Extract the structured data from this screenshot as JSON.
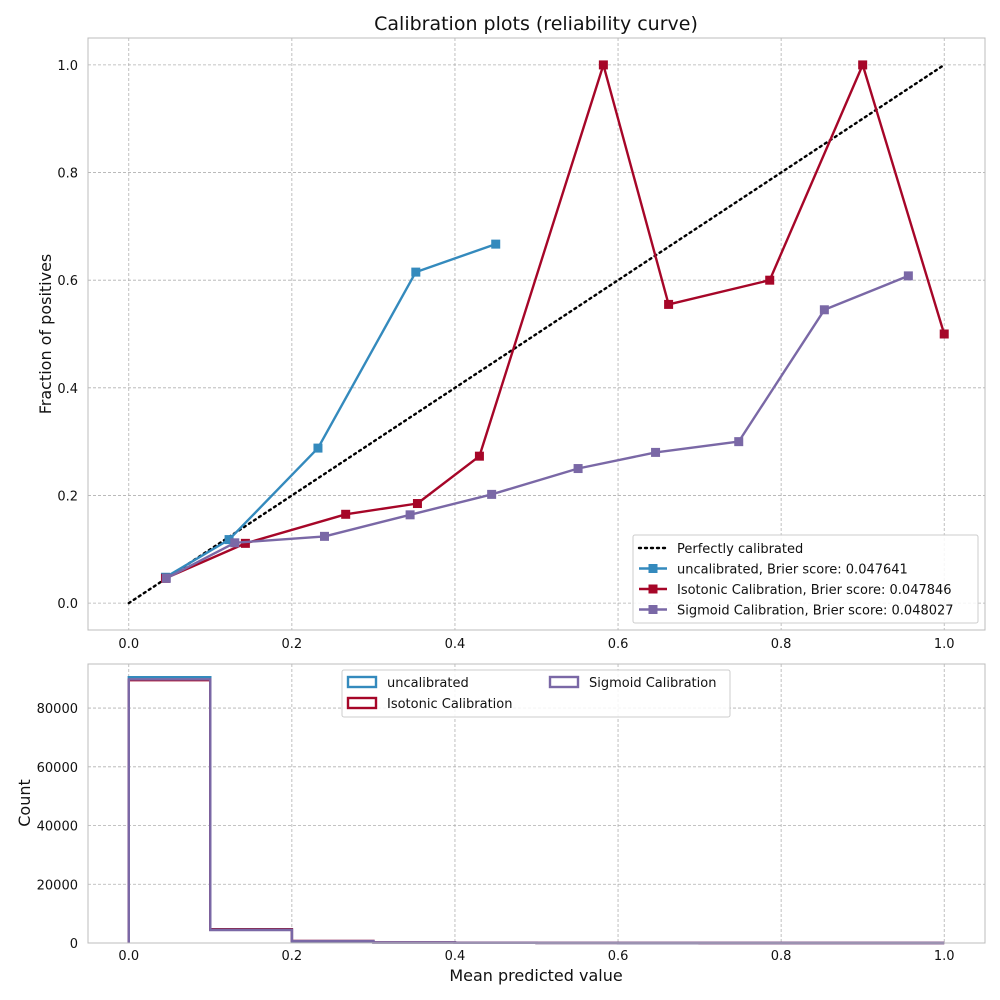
{
  "chart_data": [
    {
      "type": "line",
      "title": "Calibration plots  (reliability curve)",
      "xlabel": "",
      "ylabel": "Fraction of positives",
      "xlim": [
        -0.05,
        1.05
      ],
      "ylim": [
        -0.05,
        1.05
      ],
      "xticks": [
        "0.0",
        "0.2",
        "0.4",
        "0.6",
        "0.8",
        "1.0"
      ],
      "yticks": [
        "0.0",
        "0.2",
        "0.4",
        "0.6",
        "0.8",
        "1.0"
      ],
      "grid": true,
      "legend_position": "lower right",
      "series": [
        {
          "name": "Perfectly calibrated",
          "color": "#000000",
          "style": "dotted",
          "x": [
            0,
            1
          ],
          "y": [
            0,
            1
          ]
        },
        {
          "name": "uncalibrated, Brier score: 0.047641",
          "color": "#348ABD",
          "marker": "square",
          "x": [
            0.045,
            0.123,
            0.232,
            0.352,
            0.45
          ],
          "y": [
            0.048,
            0.118,
            0.288,
            0.615,
            0.667
          ]
        },
        {
          "name": "Isotonic Calibration, Brier score: 0.047846",
          "color": "#A60628",
          "marker": "square",
          "x": [
            0.045,
            0.143,
            0.266,
            0.354,
            0.43,
            0.582,
            0.662,
            0.786,
            0.9,
            1.0
          ],
          "y": [
            0.046,
            0.111,
            0.165,
            0.185,
            0.273,
            1.0,
            0.555,
            0.6,
            1.0,
            0.5
          ]
        },
        {
          "name": "Sigmoid Calibration, Brier score: 0.048027",
          "color": "#7A68A6",
          "marker": "square",
          "x": [
            0.046,
            0.13,
            0.24,
            0.345,
            0.445,
            0.551,
            0.646,
            0.748,
            0.853,
            0.956
          ],
          "y": [
            0.046,
            0.112,
            0.124,
            0.164,
            0.202,
            0.25,
            0.28,
            0.3,
            0.545,
            0.608
          ]
        }
      ]
    },
    {
      "type": "histogram",
      "title": "",
      "xlabel": "Mean predicted value",
      "ylabel": "Count",
      "xlim": [
        -0.05,
        1.05
      ],
      "ylim": [
        0,
        95000
      ],
      "xticks": [
        "0.0",
        "0.2",
        "0.4",
        "0.6",
        "0.8",
        "1.0"
      ],
      "yticks": [
        "0",
        "20000",
        "40000",
        "60000",
        "80000"
      ],
      "grid": true,
      "legend_position": "upper center",
      "bins": [
        0,
        0.1,
        0.2,
        0.3,
        0.4,
        0.5,
        0.6,
        0.7,
        0.8,
        0.9,
        1.0
      ],
      "series": [
        {
          "name": "uncalibrated",
          "color": "#348ABD",
          "values": [
            90500,
            4700,
            600,
            150,
            60,
            30,
            15,
            10,
            5,
            2
          ]
        },
        {
          "name": "Isotonic Calibration",
          "color": "#A60628",
          "values": [
            89500,
            4600,
            700,
            200,
            80,
            40,
            20,
            12,
            8,
            3
          ]
        },
        {
          "name": "Sigmoid Calibration",
          "color": "#7A68A6",
          "values": [
            89800,
            4400,
            650,
            180,
            70,
            35,
            18,
            10,
            6,
            2
          ]
        }
      ]
    }
  ]
}
